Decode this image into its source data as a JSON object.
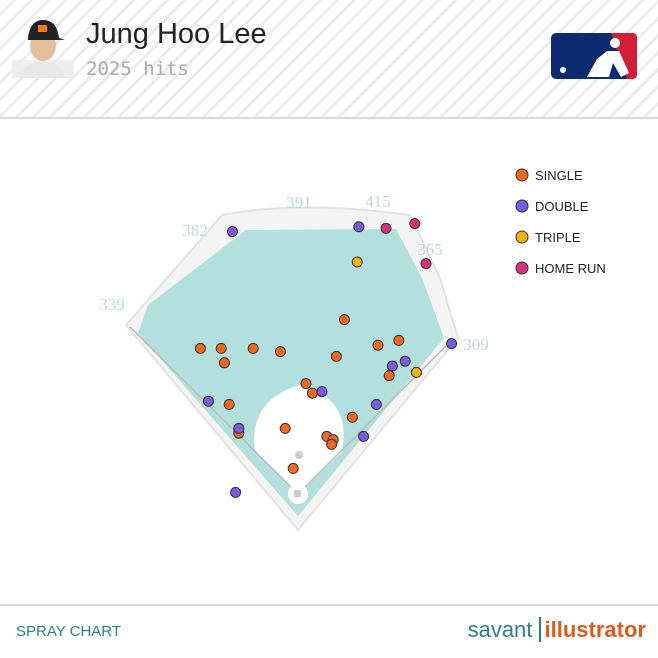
{
  "chart_data": {
    "type": "scatter",
    "title": "Jung Hoo Lee",
    "subtitle": "2025 hits",
    "xlim": [
      0,
      250
    ],
    "ylim": [
      250,
      0
    ],
    "legend": "top-right",
    "wall_distances": [
      339,
      382,
      391,
      415,
      365,
      309
    ],
    "series": [
      {
        "name": "SINGLE",
        "color": "#ef6a1e",
        "x": [
          64,
          77,
          79,
          97,
          114,
          154,
          149,
          175,
          188,
          182,
          130,
          134,
          82,
          159,
          117,
          88,
          143,
          147,
          146,
          122
        ],
        "y": [
          113,
          113,
          122,
          113,
          115,
          95,
          118,
          111,
          108,
          130,
          135,
          141,
          148,
          156,
          163,
          166,
          168,
          170,
          173,
          188
        ]
      },
      {
        "name": "DOUBLE",
        "color": "#7b5ce0",
        "x": [
          84,
          163,
          221,
          192,
          184,
          140,
          69,
          174,
          88,
          166,
          86
        ],
        "y": [
          40,
          37,
          110,
          121,
          124,
          140,
          146,
          148,
          163,
          168,
          203
        ]
      },
      {
        "name": "TRIPLE",
        "color": "#f5b400",
        "x": [
          162,
          199
        ],
        "y": [
          59,
          128
        ]
      },
      {
        "name": "HOME RUN",
        "color": "#d6337a",
        "x": [
          198,
          180,
          205
        ],
        "y": [
          35,
          38,
          60
        ]
      }
    ]
  },
  "footer": {
    "left": "SPRAY CHART",
    "brand": "savant",
    "product": "illustrator"
  }
}
